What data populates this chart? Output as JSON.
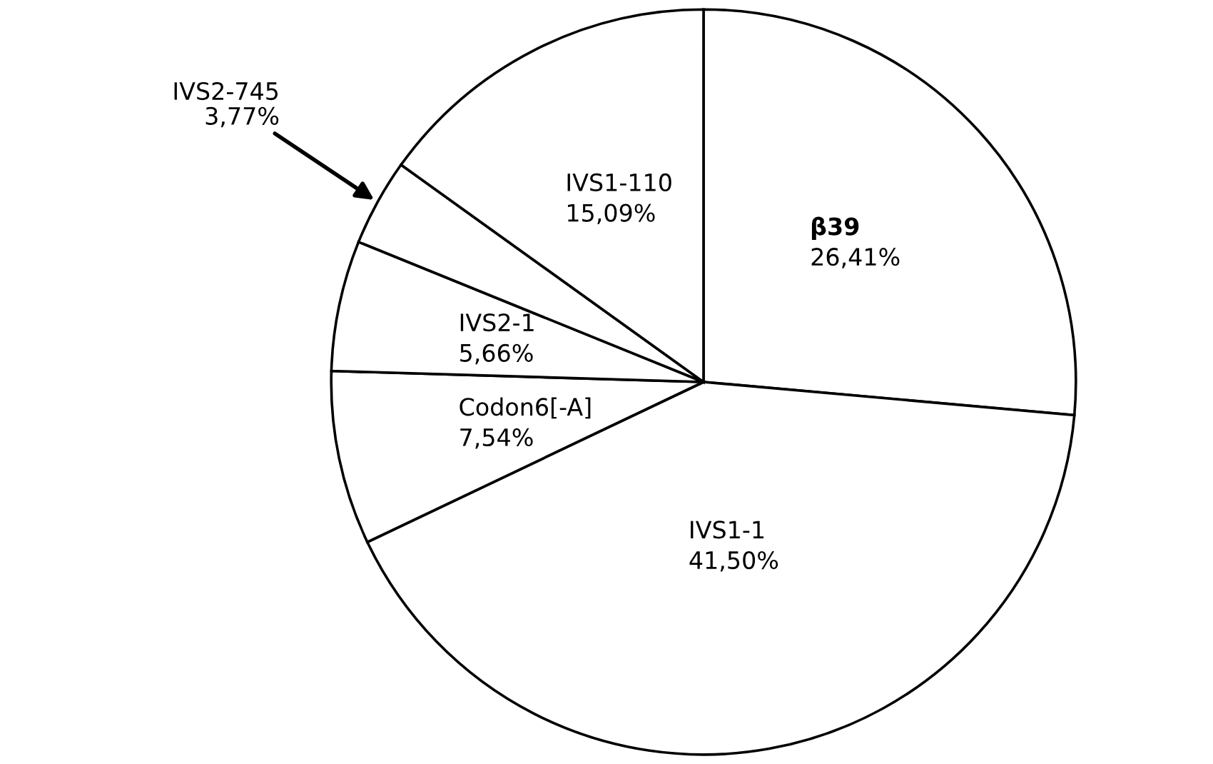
{
  "chart_data": {
    "type": "pie",
    "categories": [
      "β39",
      "IVS1-1",
      "Codon6[-A]",
      "IVS2-1",
      "IVS2-745",
      "IVS1-110"
    ],
    "values": [
      26.41,
      41.5,
      7.54,
      5.66,
      3.77,
      15.09
    ],
    "value_labels": [
      "26,41%",
      "41,50%",
      "7,54%",
      "5,66%",
      "3,77%",
      "15,09%"
    ],
    "colors": [
      "#ffffff",
      "#ffffff",
      "#ffffff",
      "#ffffff",
      "#ffffff",
      "#ffffff"
    ]
  }
}
